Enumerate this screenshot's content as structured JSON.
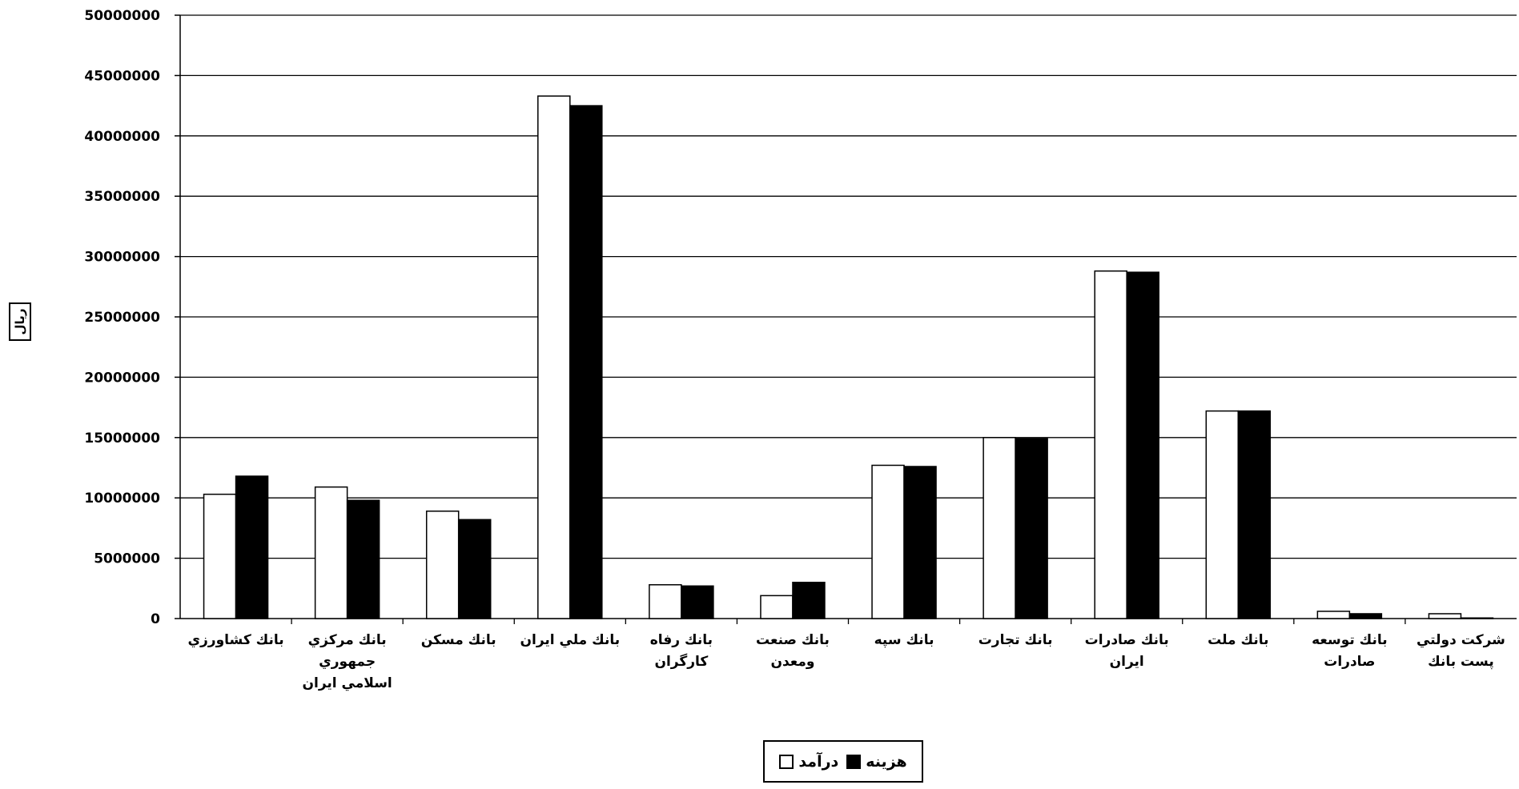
{
  "chart_data": {
    "type": "bar",
    "ylabel": "ریال",
    "ylim": [
      0,
      50000000
    ],
    "yticks": [
      {
        "value": 0,
        "label": "0"
      },
      {
        "value": 5000000,
        "label": "5000000"
      },
      {
        "value": 10000000,
        "label": "10000000"
      },
      {
        "value": 15000000,
        "label": "15000000"
      },
      {
        "value": 20000000,
        "label": "20000000"
      },
      {
        "value": 25000000,
        "label": "25000000"
      },
      {
        "value": 30000000,
        "label": "30000000"
      },
      {
        "value": 35000000,
        "label": "35000000"
      },
      {
        "value": 40000000,
        "label": "40000000"
      },
      {
        "value": 45000000,
        "label": "45000000"
      },
      {
        "value": 50000000,
        "label": "50000000"
      }
    ],
    "grid": true,
    "legend_position": "bottom",
    "categories": [
      "بانك كشاورزي",
      "بانك مركزي جمهوري اسلامي ايران",
      "بانك مسكن",
      "بانك ملي ايران",
      "بانك رفاه كارگران",
      "بانك صنعت ومعدن",
      "بانك سپه",
      "بانك تجارت",
      "بانك صادرات ايران",
      "بانك ملت",
      "بانك توسعه صادرات",
      "شركت دولتي پست بانك"
    ],
    "category_lines": [
      [
        "بانك كشاورزي"
      ],
      [
        "بانك مركزي",
        "جمهوري",
        "اسلامي ايران"
      ],
      [
        "بانك مسكن"
      ],
      [
        "بانك ملي ايران"
      ],
      [
        "بانك رفاه",
        "كارگران"
      ],
      [
        "بانك صنعت",
        "ومعدن"
      ],
      [
        "بانك سپه"
      ],
      [
        "بانك تجارت"
      ],
      [
        "بانك صادرات",
        "ايران"
      ],
      [
        "بانك ملت"
      ],
      [
        "بانك توسعه",
        "صادرات"
      ],
      [
        "شركت دولتي",
        "پست بانك"
      ]
    ],
    "series": [
      {
        "name": "درآمد",
        "color": "#ffffff",
        "values": [
          10300000,
          10900000,
          8900000,
          43300000,
          2800000,
          1900000,
          12700000,
          15000000,
          28800000,
          17200000,
          600000,
          400000
        ]
      },
      {
        "name": "هزينه",
        "color": "#000000",
        "values": [
          11800000,
          9800000,
          8200000,
          42500000,
          2700000,
          3000000,
          12600000,
          14900000,
          28700000,
          17200000,
          400000,
          50000
        ]
      }
    ]
  },
  "legend": {
    "items": [
      {
        "label": "هزينه",
        "color": "#000000"
      },
      {
        "label": "درآمد",
        "color": "#ffffff"
      }
    ]
  }
}
